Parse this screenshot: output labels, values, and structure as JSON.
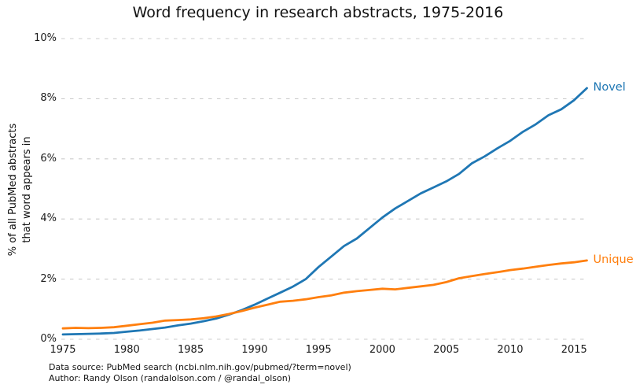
{
  "title": "Word frequency in research abstracts, 1975-2016",
  "footer": {
    "line1": "Data source: PubMed search (ncbi.nlm.nih.gov/pubmed/?term=novel)",
    "line2": "Author: Randy Olson (randalolson.com / @randal_olson)"
  },
  "colors": {
    "novel_line": "#1f77b4",
    "unique_line": "#ff7f0e",
    "gridline": "#cccccc",
    "text": "#111111"
  },
  "chart_data": {
    "type": "line",
    "title": "Word frequency in research abstracts, 1975-2016",
    "xlabel": "",
    "ylabel": "% of all PubMed abstracts\nthat word appears in",
    "xlim": [
      1975,
      2016
    ],
    "ylim": [
      0,
      10
    ],
    "grid": true,
    "grid_style": "dashed",
    "legend_position": "line-end-labels",
    "yticks": [
      0,
      2,
      4,
      6,
      8,
      10
    ],
    "ytick_labels": [
      "0%",
      "2%",
      "4%",
      "6%",
      "8%",
      "10%"
    ],
    "xticks": [
      1975,
      1980,
      1985,
      1990,
      1995,
      2000,
      2005,
      2010,
      2015
    ],
    "xtick_labels": [
      "1975",
      "1980",
      "1985",
      "1990",
      "1995",
      "2000",
      "2005",
      "2010",
      "2015"
    ],
    "x": [
      1975,
      1976,
      1977,
      1978,
      1979,
      1980,
      1981,
      1982,
      1983,
      1984,
      1985,
      1986,
      1987,
      1988,
      1989,
      1990,
      1991,
      1992,
      1993,
      1994,
      1995,
      1996,
      1997,
      1998,
      1999,
      2000,
      2001,
      2002,
      2003,
      2004,
      2005,
      2006,
      2007,
      2008,
      2009,
      2010,
      2011,
      2012,
      2013,
      2014,
      2015,
      2016
    ],
    "series": [
      {
        "name": "Novel",
        "color": "#1f77b4",
        "values": [
          0.16,
          0.17,
          0.18,
          0.19,
          0.21,
          0.25,
          0.29,
          0.34,
          0.39,
          0.46,
          0.52,
          0.6,
          0.69,
          0.82,
          0.97,
          1.15,
          1.35,
          1.55,
          1.75,
          2.0,
          2.4,
          2.75,
          3.1,
          3.35,
          3.7,
          4.05,
          4.35,
          4.6,
          4.85,
          5.05,
          5.25,
          5.5,
          5.85,
          6.08,
          6.35,
          6.6,
          6.9,
          7.15,
          7.45,
          7.65,
          7.95,
          8.35
        ]
      },
      {
        "name": "Unique",
        "color": "#ff7f0e",
        "values": [
          0.36,
          0.38,
          0.37,
          0.38,
          0.4,
          0.45,
          0.5,
          0.55,
          0.62,
          0.64,
          0.66,
          0.7,
          0.76,
          0.84,
          0.94,
          1.05,
          1.15,
          1.25,
          1.28,
          1.33,
          1.4,
          1.46,
          1.55,
          1.6,
          1.64,
          1.68,
          1.66,
          1.71,
          1.76,
          1.81,
          1.9,
          2.03,
          2.1,
          2.17,
          2.23,
          2.3,
          2.35,
          2.41,
          2.47,
          2.52,
          2.56,
          2.62
        ]
      }
    ]
  }
}
